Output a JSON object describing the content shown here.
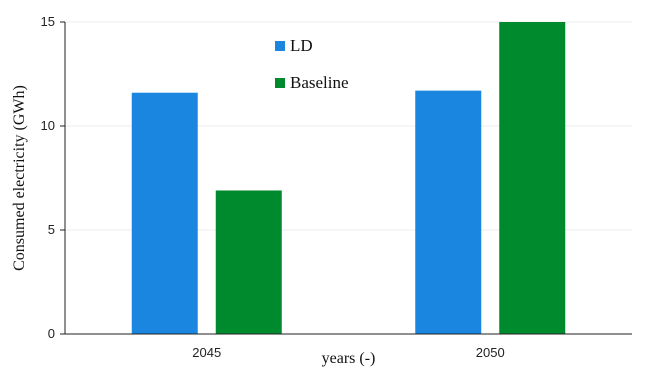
{
  "chart_data": {
    "type": "bar",
    "categories": [
      "2045",
      "2050"
    ],
    "series": [
      {
        "name": "LD",
        "color": "#1a86e0",
        "values": [
          11.6,
          11.7
        ]
      },
      {
        "name": "Baseline",
        "color": "#008a2e",
        "values": [
          6.9,
          15.0
        ]
      }
    ],
    "xlabel": "years (-)",
    "ylabel": "Consumed electricity (GWh)",
    "ylim": [
      0,
      15
    ],
    "yticks": [
      0,
      5,
      10,
      15
    ],
    "grid": true,
    "legend_position": "top-center"
  }
}
